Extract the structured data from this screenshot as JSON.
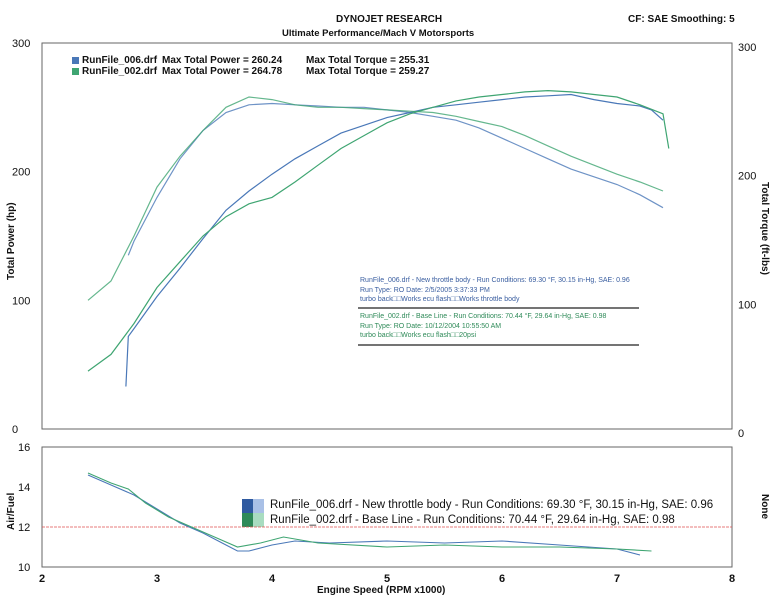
{
  "header": {
    "company": "DYNOJET RESEARCH",
    "subtitle": "Ultimate Performance/Mach V Motorsports",
    "settings": "CF: SAE  Smoothing: 5"
  },
  "colors": {
    "run006": "#4a78b8",
    "run002": "#3fa572",
    "grid": "#ffffff",
    "frame": "#666666",
    "ref_line": "#e05050"
  },
  "legend": [
    {
      "file": "RunFile_006.drf",
      "max_power": "Max Total Power = 260.24",
      "max_torque": "Max Total Torque = 255.31"
    },
    {
      "file": "RunFile_002.drf",
      "max_power": "Max Total Power = 264.78",
      "max_torque": "Max Total Torque = 259.27"
    }
  ],
  "run_info": [
    {
      "line1": "RunFile_006.drf - New throttle body -  Run Conditions: 69.30 °F, 30.15 in-Hg, SAE: 0.96",
      "line2": "Run Type: RO  Date: 2/5/2005 3:37:33 PM",
      "line3": "turbo back□□Works ecu flash□□Works throttle body"
    },
    {
      "line1": "RunFile_002.drf - Base Line -  Run Conditions: 70.44 °F, 29.64 in-Hg, SAE: 0.98",
      "line2": "Run Type: RO  Date: 10/12/2004 10:55:50 AM",
      "line3": "turbo back□□Works ecu flash□□20psi"
    }
  ],
  "af_legend": [
    "RunFile_006.drf - New throttle body -  Run Conditions: 69.30 °F, 30.15 in-Hg, SAE: 0.96",
    "RunFile_002.drf - Base Line -  Run Conditions: 70.44 °F, 29.64 in-Hg, SAE: 0.98"
  ],
  "axis_labels": {
    "power": "Total Power (hp)",
    "torque": "Total Torque (ft-lbs)",
    "airfuel": "Air/Fuel",
    "none": "None",
    "x": "Engine Speed (RPM x1000)"
  },
  "chart_data": [
    {
      "type": "line",
      "title": "DYNOJET RESEARCH",
      "xlabel": "Engine Speed (RPM x1000)",
      "ylabel": "Total Power (hp)",
      "y2label": "Total Torque (ft-lbs)",
      "xlim": [
        2,
        8
      ],
      "ylim": [
        0,
        300
      ],
      "y2lim": [
        0,
        300
      ],
      "yticks": [
        0,
        100,
        200,
        300
      ],
      "y2ticks": [
        0,
        100,
        200,
        300
      ],
      "grid": true,
      "series": [
        {
          "name": "RunFile_006.drf",
          "kind": "power",
          "color": "#4a78b8",
          "x": [
            2.73,
            2.75,
            2.8,
            3.0,
            3.2,
            3.4,
            3.6,
            3.8,
            4.0,
            4.2,
            4.4,
            4.6,
            4.8,
            5.0,
            5.2,
            5.4,
            5.6,
            5.8,
            6.0,
            6.2,
            6.4,
            6.6,
            6.8,
            7.0,
            7.2,
            7.3,
            7.4
          ],
          "y": [
            33,
            72,
            78,
            103,
            125,
            148,
            170,
            185,
            198,
            210,
            220,
            230,
            236,
            242,
            246,
            250,
            252,
            254,
            256,
            258,
            259,
            260,
            256,
            253,
            251,
            248,
            240
          ]
        },
        {
          "name": "RunFile_006.drf",
          "kind": "torque",
          "color": "#4a78b8",
          "x": [
            2.75,
            2.8,
            3.0,
            3.2,
            3.4,
            3.6,
            3.8,
            4.0,
            4.2,
            4.4,
            4.6,
            4.8,
            5.0,
            5.2,
            5.4,
            5.6,
            5.8,
            6.0,
            6.2,
            6.4,
            6.6,
            6.8,
            7.0,
            7.2,
            7.4
          ],
          "y": [
            135,
            146,
            180,
            210,
            232,
            246,
            252,
            253,
            252,
            251,
            250,
            250,
            248,
            246,
            243,
            240,
            234,
            226,
            218,
            210,
            202,
            196,
            190,
            182,
            172
          ]
        },
        {
          "name": "RunFile_002.drf",
          "kind": "power",
          "color": "#3fa572",
          "x": [
            2.4,
            2.6,
            2.8,
            3.0,
            3.2,
            3.4,
            3.6,
            3.8,
            4.0,
            4.2,
            4.4,
            4.6,
            4.8,
            5.0,
            5.2,
            5.4,
            5.6,
            5.8,
            6.0,
            6.2,
            6.4,
            6.6,
            6.8,
            7.0,
            7.2,
            7.4,
            7.45
          ],
          "y": [
            45,
            58,
            82,
            110,
            130,
            150,
            165,
            175,
            180,
            192,
            205,
            218,
            228,
            238,
            245,
            250,
            255,
            258,
            260,
            262,
            263,
            262,
            260,
            258,
            252,
            245,
            218
          ]
        },
        {
          "name": "RunFile_002.drf",
          "kind": "torque",
          "color": "#3fa572",
          "x": [
            2.4,
            2.6,
            2.8,
            3.0,
            3.2,
            3.4,
            3.6,
            3.8,
            4.0,
            4.2,
            4.4,
            4.6,
            4.8,
            5.0,
            5.2,
            5.4,
            5.6,
            5.8,
            6.0,
            6.2,
            6.4,
            6.6,
            6.8,
            7.0,
            7.2,
            7.4
          ],
          "y": [
            100,
            115,
            150,
            188,
            212,
            232,
            250,
            258,
            256,
            252,
            250,
            250,
            249,
            248,
            247,
            246,
            243,
            239,
            235,
            228,
            220,
            212,
            205,
            198,
            192,
            185
          ]
        }
      ]
    },
    {
      "type": "line",
      "xlabel": "Engine Speed (RPM x1000)",
      "ylabel": "Air/Fuel",
      "y2label": "None",
      "xlim": [
        2,
        8
      ],
      "ylim": [
        10,
        16
      ],
      "yticks": [
        10,
        12,
        14,
        16
      ],
      "xticks": [
        2,
        3,
        4,
        5,
        6,
        7,
        8
      ],
      "reference_line": 12,
      "grid": true,
      "series": [
        {
          "name": "RunFile_006.drf",
          "color": "#4a78b8",
          "x": [
            2.4,
            2.6,
            2.8,
            3.0,
            3.2,
            3.4,
            3.6,
            3.7,
            3.8,
            4.0,
            4.2,
            4.5,
            5.0,
            5.5,
            6.0,
            6.5,
            7.0,
            7.2
          ],
          "y": [
            14.6,
            14.1,
            13.6,
            12.9,
            12.2,
            11.7,
            11.1,
            10.8,
            10.8,
            11.1,
            11.3,
            11.2,
            11.3,
            11.2,
            11.3,
            11.1,
            10.9,
            10.6
          ]
        },
        {
          "name": "RunFile_002.drf",
          "color": "#3fa572",
          "x": [
            2.4,
            2.6,
            2.75,
            2.9,
            3.1,
            3.3,
            3.5,
            3.7,
            3.9,
            4.1,
            4.4,
            5.0,
            5.5,
            6.0,
            6.5,
            7.0,
            7.3
          ],
          "y": [
            14.7,
            14.2,
            13.9,
            13.2,
            12.5,
            12.0,
            11.5,
            11.0,
            11.2,
            11.5,
            11.2,
            11.0,
            11.1,
            11.0,
            11.0,
            10.9,
            10.8
          ]
        }
      ]
    }
  ]
}
